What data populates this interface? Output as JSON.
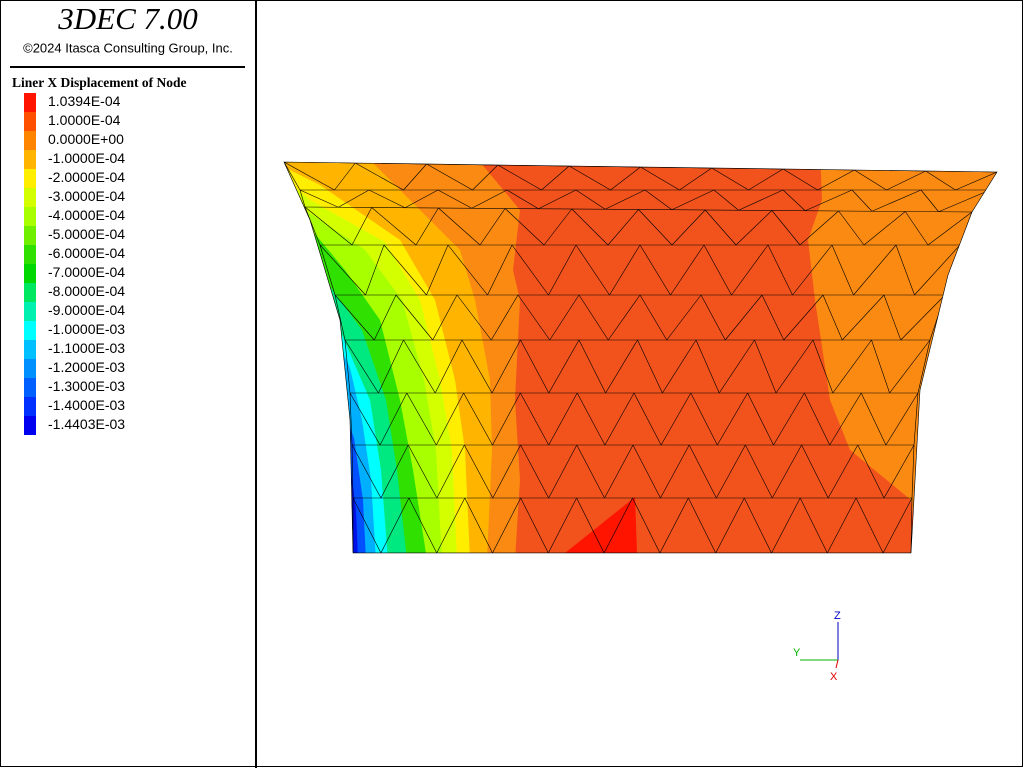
{
  "header": {
    "title": "3DEC 7.00",
    "copyright": "©2024 Itasca Consulting Group, Inc."
  },
  "legend": {
    "title": "Liner X Displacement of Node",
    "items": [
      {
        "label": "1.0394E-04",
        "color": "#ff1400"
      },
      {
        "label": "1.0000E-04",
        "color": "#ff5000"
      },
      {
        "label": "0.0000E+00",
        "color": "#ff8400"
      },
      {
        "label": "-1.0000E-04",
        "color": "#ffb400"
      },
      {
        "label": "-2.0000E-04",
        "color": "#ffee00"
      },
      {
        "label": "-3.0000E-04",
        "color": "#d4ff00"
      },
      {
        "label": "-4.0000E-04",
        "color": "#a8ff00"
      },
      {
        "label": "-5.0000E-04",
        "color": "#70f000"
      },
      {
        "label": "-6.0000E-04",
        "color": "#30e000"
      },
      {
        "label": "-7.0000E-04",
        "color": "#00d800"
      },
      {
        "label": "-8.0000E-04",
        "color": "#00e860"
      },
      {
        "label": "-9.0000E-04",
        "color": "#00f0b0"
      },
      {
        "label": "-1.0000E-03",
        "color": "#00ffff"
      },
      {
        "label": "-1.1000E-03",
        "color": "#00c0ff"
      },
      {
        "label": "-1.2000E-03",
        "color": "#0090ff"
      },
      {
        "label": "-1.3000E-03",
        "color": "#0060ff"
      },
      {
        "label": "-1.4000E-03",
        "color": "#0030ff"
      },
      {
        "label": "-1.4403E-03",
        "color": "#0000f0"
      }
    ]
  },
  "axes": {
    "z": "Z",
    "y": "Y",
    "x": "X"
  }
}
